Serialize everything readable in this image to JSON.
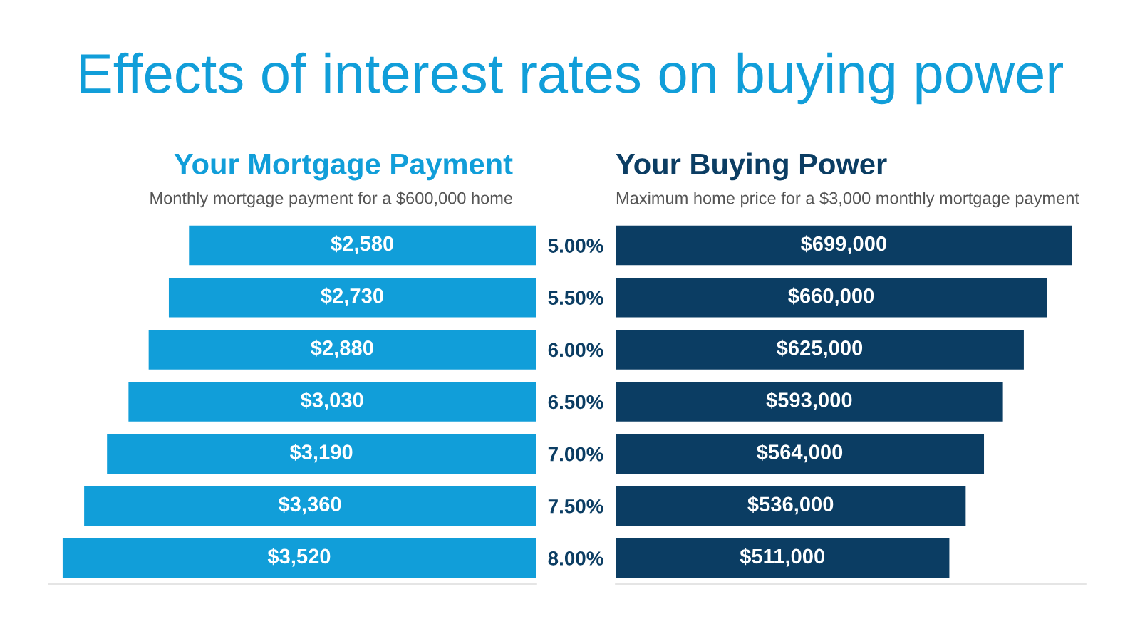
{
  "chart_data": [
    {
      "type": "bar",
      "orientation": "horizontal",
      "title": "Effects of interest rates on buying power",
      "subtitle": "Your Mortgage Payment",
      "annotations": [
        "Monthly mortgage payment for a $600,000 home"
      ],
      "categories": [
        "5.00%",
        "5.50%",
        "6.00%",
        "6.50%",
        "7.00%",
        "7.50%",
        "8.00%"
      ],
      "series": [
        {
          "color": "#119ed9",
          "values": [
            2580,
            2730,
            2880,
            3030,
            3190,
            3360,
            3520
          ],
          "value_labels": [
            "$2,580",
            "$2,730",
            "$2,880",
            "$3,030",
            "$3,190",
            "$3,360",
            "$3,520"
          ]
        }
      ],
      "tick_labels": "y",
      "grid": false,
      "legend": false
    },
    {
      "type": "bar",
      "orientation": "horizontal",
      "subtitle": "Your Buying Power",
      "annotations": [
        "Maximum home price for a $3,000 monthly mortgage payment"
      ],
      "categories": [
        null,
        null,
        null,
        null,
        null,
        null,
        null
      ],
      "series": [
        {
          "color": "#0b3d63",
          "values": [
            699000,
            660000,
            625000,
            593000,
            564000,
            536000,
            511000
          ],
          "value_labels": [
            "$699,000",
            "$660,000",
            "$625,000",
            "$593,000",
            "$564,000",
            "$536,000",
            "$511,000"
          ]
        }
      ],
      "grid": false,
      "legend": false
    }
  ]
}
